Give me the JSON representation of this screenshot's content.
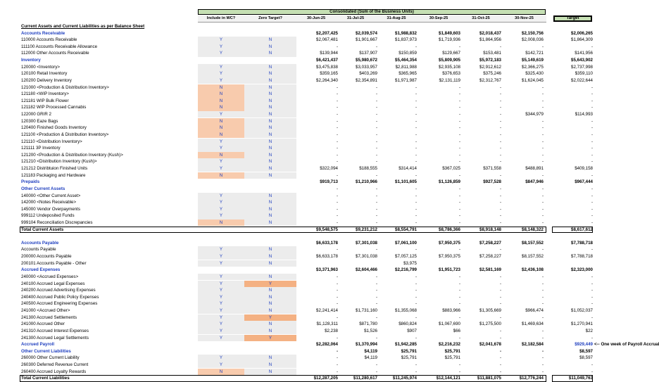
{
  "header": {
    "consolidated_title": "Consolidated (Sum of the Business Units)",
    "target_label": "Target"
  },
  "columns": {
    "include_wc": "Include in WC?",
    "zero_target": "Zero Target?",
    "periods": [
      "30-Jun-25",
      "31-Jul-25",
      "31-Aug-25",
      "30-Sep-25",
      "31-Oct-25",
      "30-Nov-25"
    ]
  },
  "rows": [
    {
      "label": "Current Assets and Current Liabilities as per Balance Sheet",
      "style": "title",
      "wc": "",
      "zt": "",
      "vals": [
        "",
        "",
        "",
        "",
        "",
        ""
      ],
      "tgt": ""
    },
    {
      "label": "Accounts Receivable",
      "style": "sec",
      "wc": "",
      "zt": "",
      "vals": [
        "$2,207,425",
        "$2,039,574",
        "$1,988,832",
        "$1,849,603",
        "$2,018,437",
        "$2,150,756"
      ],
      "tgt": "$2,006,265",
      "bold": true
    },
    {
      "label": "110000 Accounts Receivable",
      "style": "",
      "wc": "Y",
      "zt": "N",
      "vals": [
        "$2,067,481",
        "$1,901,667",
        "$1,837,973",
        "$1,719,936",
        "$1,864,956",
        "$2,008,036"
      ],
      "tgt": "$1,864,309"
    },
    {
      "label": "111100 Accounts Receivable Allowance",
      "style": "",
      "wc": "Y",
      "zt": "N",
      "vals": [
        "-",
        "-",
        "-",
        "-",
        "-",
        "-"
      ],
      "tgt": "-"
    },
    {
      "label": "112000 Other Accounts Receivable",
      "style": "",
      "wc": "Y",
      "zt": "N",
      "vals": [
        "$139,944",
        "$137,907",
        "$150,859",
        "$129,667",
        "$153,481",
        "$142,721"
      ],
      "tgt": "$141,956"
    },
    {
      "label": "Inventory",
      "style": "sec",
      "wc": "",
      "zt": "",
      "vals": [
        "$6,421,437",
        "$5,980,672",
        "$5,464,354",
        "$5,809,905",
        "$5,972,183",
        "$5,149,619"
      ],
      "tgt": "$5,643,902",
      "bold": true
    },
    {
      "label": "120000 <Inventory>",
      "style": "",
      "wc": "Y",
      "zt": "N",
      "vals": [
        "$3,475,838",
        "$3,033,957",
        "$2,811,988",
        "$2,935,108",
        "$2,912,612",
        "$2,366,275"
      ],
      "tgt": "$2,737,998"
    },
    {
      "label": "120100 Retail Inventory",
      "style": "",
      "wc": "Y",
      "zt": "N",
      "vals": [
        "$359,165",
        "$403,269",
        "$365,965",
        "$376,653",
        "$375,246",
        "$325,430"
      ],
      "tgt": "$359,110"
    },
    {
      "label": "120200 Delivery Inventory",
      "style": "",
      "wc": "Y",
      "zt": "N",
      "vals": [
        "$2,264,340",
        "$2,354,891",
        "$1,971,987",
        "$2,131,119",
        "$2,312,767",
        "$1,624,045"
      ],
      "tgt": "$2,022,644"
    },
    {
      "label": "121000 <Production & Distribution Inventory>",
      "style": "",
      "wc": "N",
      "zt": "N",
      "shadeWc": "#f8cbad",
      "vals": [
        "-",
        "-",
        "-",
        "-",
        "-",
        "-"
      ],
      "tgt": "-"
    },
    {
      "label": "121180 <WIP Inventory>",
      "style": "",
      "wc": "N",
      "zt": "N",
      "shadeWc": "#f8cbad",
      "vals": [
        "-",
        "-",
        "-",
        "-",
        "-",
        "-"
      ],
      "tgt": "-"
    },
    {
      "label": "121181 WIP Bulk Flower",
      "style": "",
      "wc": "N",
      "zt": "N",
      "shadeWc": "#f8cbad",
      "vals": [
        "-",
        "-",
        "-",
        "-",
        "-",
        "-"
      ],
      "tgt": "-"
    },
    {
      "label": "121182 WIP Processed Cannabis",
      "style": "",
      "wc": "N",
      "zt": "N",
      "shadeWc": "#f8cbad",
      "vals": [
        "-",
        "-",
        "-",
        "-",
        "-",
        "-"
      ],
      "tgt": "-"
    },
    {
      "label": "122000 GRIR 2",
      "style": "",
      "wc": "Y",
      "zt": "N",
      "vals": [
        "-",
        "-",
        "-",
        "-",
        "-",
        "$344,979"
      ],
      "tgt": "$114,993"
    },
    {
      "label": "120300 Eaze Bags",
      "style": "",
      "wc": "N",
      "zt": "N",
      "shadeWc": "#f8cbad",
      "vals": [
        "-",
        "-",
        "-",
        "-",
        "-",
        "-"
      ],
      "tgt": "-"
    },
    {
      "label": "120400 Finished Goods Inventory",
      "style": "",
      "wc": "N",
      "zt": "N",
      "shadeWc": "#f8cbad",
      "vals": [
        "-",
        "-",
        "-",
        "-",
        "-",
        "-"
      ],
      "tgt": "-"
    },
    {
      "label": "121100 <Production & Distribution Inventory>",
      "style": "",
      "wc": "N",
      "zt": "N",
      "shadeWc": "#f8cbad",
      "vals": [
        "-",
        "-",
        "-",
        "-",
        "-",
        "-"
      ],
      "tgt": "-"
    },
    {
      "label": "121110 <Distribution Inventory>",
      "style": "",
      "wc": "Y",
      "zt": "N",
      "vals": [
        "-",
        "-",
        "-",
        "-",
        "-",
        "-"
      ],
      "tgt": "-"
    },
    {
      "label": "121111 3P Inventory",
      "style": "",
      "wc": "Y",
      "zt": "N",
      "vals": [
        "-",
        "-",
        "-",
        "-",
        "-",
        "-"
      ],
      "tgt": "-"
    },
    {
      "label": "121200 <Production & Distribution Inventory (Kush)>",
      "style": "",
      "wc": "N",
      "zt": "N",
      "shadeWc": "#f8cbad",
      "vals": [
        "-",
        "-",
        "-",
        "-",
        "-",
        "-"
      ],
      "tgt": "-"
    },
    {
      "label": "121210 <Distribution Inventory (Kush)>",
      "style": "",
      "wc": "Y",
      "zt": "N",
      "vals": [
        "-",
        "-",
        "-",
        "-",
        "-",
        "-"
      ],
      "tgt": "-"
    },
    {
      "label": "121212 Distribtuion Finished Units",
      "style": "",
      "wc": "Y",
      "zt": "N",
      "vals": [
        "$322,094",
        "$188,555",
        "$314,414",
        "$367,025",
        "$371,558",
        "$488,891"
      ],
      "tgt": "$409,158"
    },
    {
      "label": "121183 Packaging and Hardware",
      "style": "",
      "wc": "N",
      "zt": "N",
      "shadeWc": "#f8cbad",
      "vals": [
        "-",
        "-",
        "-",
        "-",
        "-",
        "-"
      ],
      "tgt": "-"
    },
    {
      "label": "Prepaids",
      "style": "sec",
      "wc": "",
      "zt": "",
      "vals": [
        "$919,713",
        "$1,210,966",
        "$1,101,605",
        "$1,126,859",
        "$927,528",
        "$847,946"
      ],
      "tgt": "$967,444",
      "bold": true
    },
    {
      "label": "Other Current Assets",
      "style": "sec",
      "wc": "",
      "zt": "",
      "vals": [
        "-",
        "-",
        "-",
        "-",
        "-",
        "-"
      ],
      "tgt": "-"
    },
    {
      "label": "140000 <Other Current Asset>",
      "style": "",
      "wc": "Y",
      "zt": "N",
      "vals": [
        "-",
        "-",
        "-",
        "-",
        "-",
        "-"
      ],
      "tgt": "-"
    },
    {
      "label": "142000 <Notes Receivable>",
      "style": "",
      "wc": "Y",
      "zt": "N",
      "vals": [
        "-",
        "-",
        "-",
        "-",
        "-",
        "-"
      ],
      "tgt": "-"
    },
    {
      "label": "145000 Vendor Overpayments",
      "style": "",
      "wc": "Y",
      "zt": "N",
      "vals": [
        "-",
        "-",
        "-",
        "-",
        "-",
        "-"
      ],
      "tgt": "-"
    },
    {
      "label": "999112 Undeposited Funds",
      "style": "",
      "wc": "Y",
      "zt": "N",
      "vals": [
        "-",
        "-",
        "-",
        "-",
        "-",
        "-"
      ],
      "tgt": "-"
    },
    {
      "label": "999104 Reconciliation Discrepancies",
      "style": "",
      "wc": "N",
      "zt": "N",
      "shadeWc": "#f8cbad",
      "vals": [
        "-",
        "-",
        "-",
        "-",
        "-",
        "-"
      ],
      "tgt": "-"
    },
    {
      "label": "Total Current Assets",
      "style": "bold",
      "wc": "",
      "zt": "",
      "total": true,
      "vals": [
        "$9,548,575",
        "$9,231,212",
        "$8,554,791",
        "$8,786,366",
        "$8,918,148",
        "$8,148,322"
      ],
      "tgt": "$8,617,612",
      "bold": true
    },
    {
      "label": "",
      "style": "",
      "wc": "",
      "zt": "",
      "vals": [
        "",
        "",
        "",
        "",
        "",
        ""
      ],
      "tgt": ""
    },
    {
      "label": "Accounts Payable",
      "style": "sec",
      "wc": "",
      "zt": "",
      "vals": [
        "$6,633,178",
        "$7,301,038",
        "$7,061,100",
        "$7,950,375",
        "$7,258,227",
        "$8,157,552"
      ],
      "tgt": "$7,788,718",
      "bold": true
    },
    {
      "label": "Accounts Payable",
      "style": "",
      "wc": "Y",
      "zt": "N",
      "vals": [
        "-",
        "-",
        "-",
        "-",
        "-",
        "-"
      ],
      "tgt": "-"
    },
    {
      "label": "200000 Accounts Payable",
      "style": "",
      "wc": "Y",
      "zt": "N",
      "vals": [
        "$6,633,178",
        "$7,301,038",
        "$7,057,125",
        "$7,950,375",
        "$7,258,227",
        "$8,157,552"
      ],
      "tgt": "$7,788,718"
    },
    {
      "label": "200101 Accounts Payable - Other",
      "style": "",
      "wc": "Y",
      "zt": "N",
      "vals": [
        "",
        "",
        "$3,975",
        "",
        "",
        ""
      ],
      "tgt": ""
    },
    {
      "label": "Accrued Expenses",
      "style": "sec",
      "wc": "",
      "zt": "",
      "vals": [
        "$3,371,963",
        "$2,604,466",
        "$2,216,799",
        "$1,951,723",
        "$2,581,169",
        "$2,436,108"
      ],
      "tgt": "$2,323,000",
      "bold": true
    },
    {
      "label": "240000 <Accrued Expenses>",
      "style": "",
      "wc": "Y",
      "zt": "N",
      "vals": [
        "-",
        "-",
        "-",
        "-",
        "-",
        "-"
      ],
      "tgt": "-"
    },
    {
      "label": "240100 Accrued Legal Expenses",
      "style": "",
      "wc": "Y",
      "zt": "Y",
      "shadeZt": "#f4b183",
      "vals": [
        "-",
        "-",
        "-",
        "-",
        "-",
        "-"
      ],
      "tgt": "-"
    },
    {
      "label": "240200 Accrued Advertising Expenses",
      "style": "",
      "wc": "Y",
      "zt": "N",
      "vals": [
        "-",
        "-",
        "-",
        "-",
        "-",
        "-"
      ],
      "tgt": "-"
    },
    {
      "label": "240400 Accrued Public Policy Expenses",
      "style": "",
      "wc": "Y",
      "zt": "N",
      "vals": [
        "-",
        "-",
        "-",
        "-",
        "-",
        "-"
      ],
      "tgt": "-"
    },
    {
      "label": "240500 Accrued Engineering Expenses",
      "style": "",
      "wc": "Y",
      "zt": "N",
      "vals": [
        "-",
        "-",
        "-",
        "-",
        "-",
        "-"
      ],
      "tgt": "-"
    },
    {
      "label": "241000 <Accrued Other>",
      "style": "",
      "wc": "Y",
      "zt": "N",
      "vals": [
        "$2,241,414",
        "$1,731,160",
        "$1,355,068",
        "$883,966",
        "$1,305,669",
        "$966,474"
      ],
      "tgt": "$1,052,037"
    },
    {
      "label": "241300 Accrued Settlements",
      "style": "",
      "wc": "Y",
      "zt": "Y",
      "shadeZt": "#f4b183",
      "vals": [
        "-",
        "-",
        "-",
        "-",
        "-",
        "-"
      ],
      "tgt": "-"
    },
    {
      "label": "241000 Accrued Other",
      "style": "",
      "wc": "Y",
      "zt": "N",
      "vals": [
        "$1,128,311",
        "$871,780",
        "$860,824",
        "$1,067,690",
        "$1,275,500",
        "$1,469,634"
      ],
      "tgt": "$1,270,941"
    },
    {
      "label": "241310 Accrued Interest Expenses",
      "style": "",
      "wc": "Y",
      "zt": "N",
      "vals": [
        "$2,238",
        "$1,526",
        "$907",
        "$66",
        "-",
        "-"
      ],
      "tgt": "$22"
    },
    {
      "label": "241300 Accrued Legal Settlements",
      "style": "",
      "wc": "Y",
      "zt": "Y",
      "shadeZt": "#f4b183",
      "vals": [
        "-",
        "-",
        "-",
        "-",
        "-",
        "-"
      ],
      "tgt": "-"
    },
    {
      "label": "Accrued Payroll",
      "style": "sec",
      "wc": "",
      "zt": "",
      "vals": [
        "$2,282,064",
        "$1,370,994",
        "$1,942,285",
        "$2,216,232",
        "$2,041,678",
        "$2,182,584"
      ],
      "tgt": "$929,449",
      "tgtBlue": true,
      "note": "<-- One week of Payroll Accrual",
      "bold": true
    },
    {
      "label": "Other Current Liabilities",
      "style": "sec",
      "wc": "",
      "zt": "",
      "vals": [
        "-",
        "$4,119",
        "$25,791",
        "$25,791",
        "-",
        "-"
      ],
      "tgt": "$8,597",
      "bold": true
    },
    {
      "label": "260000 Other Current Liability",
      "style": "",
      "wc": "Y",
      "zt": "N",
      "vals": [
        "-",
        "$4,119",
        "$25,791",
        "$25,791",
        "-",
        "-"
      ],
      "tgt": "$8,597"
    },
    {
      "label": "260300 Deferred Revenue Current",
      "style": "",
      "wc": "Y",
      "zt": "N",
      "vals": [
        "-",
        "-",
        "-",
        "-",
        "-",
        "-"
      ],
      "tgt": "-"
    },
    {
      "label": "260400 Accrued Loyalty Rewards",
      "style": "",
      "wc": "N",
      "zt": "N",
      "shadeWc": "#f8cbad",
      "vals": [
        "-",
        "-",
        "-",
        "-",
        "-",
        "-"
      ],
      "tgt": "-"
    },
    {
      "label": "Total Current Liabilities",
      "style": "bold",
      "wc": "",
      "zt": "",
      "total": true,
      "vals": [
        "$12,287,205",
        "$11,280,617",
        "$11,245,974",
        "$12,144,121",
        "$11,881,075",
        "$12,776,244"
      ],
      "tgt": "$11,049,763",
      "bold": true
    }
  ]
}
